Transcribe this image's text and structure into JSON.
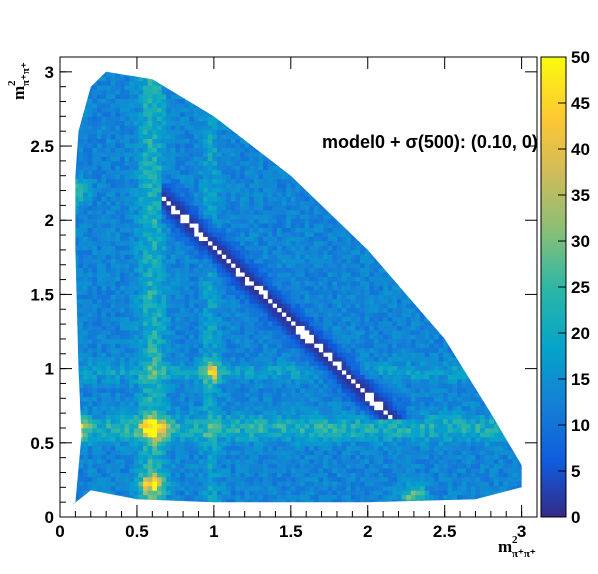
{
  "chart_data": {
    "type": "heatmap",
    "title": "",
    "annotation": "model0 + σ(500): (0.10, 0)",
    "xlabel": {
      "base": "m",
      "sup": "2",
      "sub": "π⁺π⁺"
    },
    "ylabel": {
      "base": "m",
      "sup": "2",
      "sub": "π⁺π⁺"
    },
    "xlim": [
      0,
      3.1
    ],
    "ylim": [
      0,
      3.1
    ],
    "x_ticks": [
      0,
      0.5,
      1,
      1.5,
      2,
      2.5,
      3
    ],
    "x_tick_labels": [
      "0",
      "0.5",
      "1",
      "1.5",
      "2",
      "2.5",
      "3"
    ],
    "y_ticks": [
      0,
      0.5,
      1,
      1.5,
      2,
      2.5,
      3
    ],
    "y_tick_labels": [
      "0",
      "0.5",
      "1",
      "1.5",
      "2",
      "2.5",
      "3"
    ],
    "colorbar": {
      "range": [
        0,
        50
      ],
      "ticks": [
        0,
        5,
        10,
        15,
        20,
        25,
        30,
        35,
        40,
        45,
        50
      ],
      "tick_labels": [
        "0",
        "5",
        "10",
        "15",
        "20",
        "25",
        "30",
        "35",
        "40",
        "45",
        "50"
      ],
      "colors": [
        "#352a87",
        "#0f5cdd",
        "#1481d6",
        "#06a4ca",
        "#2eb7a4",
        "#87bf77",
        "#d1bb59",
        "#fec832",
        "#f9fb0e"
      ]
    },
    "dalitz_boundary": [
      [
        0.08,
        0.08
      ],
      [
        0.1,
        0.1
      ],
      [
        0.14,
        0.55
      ],
      [
        0.12,
        1.0
      ],
      [
        0.1,
        1.8
      ],
      [
        0.1,
        2.3
      ],
      [
        0.12,
        2.6
      ],
      [
        0.2,
        2.9
      ],
      [
        0.3,
        3.0
      ],
      [
        0.6,
        2.95
      ],
      [
        1.0,
        2.7
      ],
      [
        1.5,
        2.3
      ],
      [
        2.0,
        1.8
      ],
      [
        2.5,
        1.2
      ],
      [
        2.8,
        0.7
      ],
      [
        3.0,
        0.35
      ],
      [
        3.0,
        0.2
      ],
      [
        2.7,
        0.12
      ],
      [
        2.0,
        0.1
      ],
      [
        1.0,
        0.1
      ],
      [
        0.5,
        0.12
      ],
      [
        0.2,
        0.18
      ]
    ],
    "features": [
      {
        "kind": "band",
        "axis": "x",
        "center": 0.98,
        "width": 0.04,
        "level": 18
      },
      {
        "kind": "band",
        "axis": "y",
        "center": 0.98,
        "width": 0.04,
        "level": 18
      },
      {
        "kind": "band",
        "axis": "x",
        "center": 0.6,
        "width": 0.06,
        "level": 22
      },
      {
        "kind": "band",
        "axis": "y",
        "center": 0.6,
        "width": 0.06,
        "level": 22
      },
      {
        "kind": "peak",
        "x": 0.6,
        "y": 0.6,
        "value": 45
      },
      {
        "kind": "peak",
        "x": 0.98,
        "y": 0.98,
        "value": 30
      },
      {
        "kind": "peak",
        "x": 0.6,
        "y": 0.22,
        "value": 40
      },
      {
        "kind": "peak",
        "x": 0.1,
        "y": 0.6,
        "value": 35
      },
      {
        "kind": "peak",
        "x": 0.1,
        "y": 2.2,
        "value": 30
      },
      {
        "kind": "peak",
        "x": 2.3,
        "y": 0.15,
        "value": 30
      },
      {
        "kind": "empty_region",
        "description": "low-density band near upper-right boundary",
        "from": [
          0.7,
          2.6
        ],
        "to": [
          2.6,
          0.7
        ]
      }
    ]
  }
}
